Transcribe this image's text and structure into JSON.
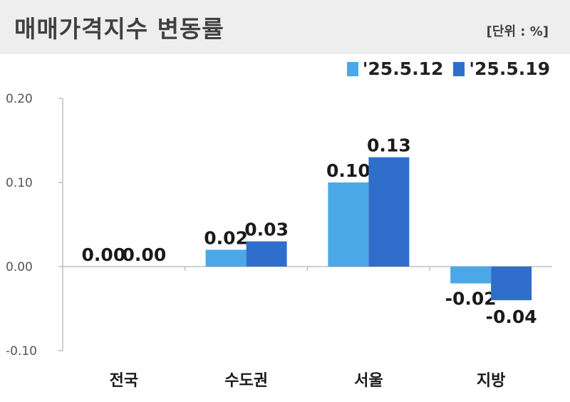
{
  "header": {
    "title": "매매가격지수 변동률",
    "unit": "[단위 : %]"
  },
  "colors": {
    "series1": "#4aa8e8",
    "series2": "#2f6fcb",
    "header_bg": "#eeeeee",
    "axis": "#bfbfbf"
  },
  "chart_data": {
    "type": "bar",
    "title": "매매가격지수 변동률",
    "unit": "[단위 : %]",
    "categories": [
      "전국",
      "수도권",
      "서울",
      "지방"
    ],
    "series": [
      {
        "name": "'25.5.12",
        "values": [
          0.0,
          0.02,
          0.1,
          -0.02
        ],
        "labels": [
          "0.00",
          "0.02",
          "0.10",
          "-0.02"
        ]
      },
      {
        "name": "'25.5.19",
        "values": [
          0.0,
          0.03,
          0.13,
          -0.04
        ],
        "labels": [
          "0.00",
          "0.03",
          "0.13",
          "-0.04"
        ]
      }
    ],
    "yticks": [
      0.2,
      0.1,
      0.0,
      -0.1
    ],
    "ytick_labels": [
      "0.20",
      "0.10",
      "0.00",
      "-0.10"
    ],
    "ylim": [
      -0.1,
      0.2
    ],
    "legend_position": "top-right",
    "xlabel": "",
    "ylabel": ""
  }
}
